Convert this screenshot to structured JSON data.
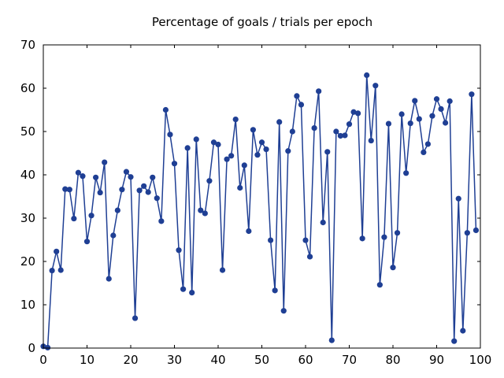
{
  "chart_data": {
    "type": "line",
    "title": "Percentage of goals / trials per epoch",
    "xlabel": "",
    "ylabel": "",
    "xlim": [
      0,
      100
    ],
    "ylim": [
      0,
      70
    ],
    "x_ticks": [
      0,
      10,
      20,
      30,
      40,
      50,
      60,
      70,
      80,
      90,
      100
    ],
    "y_ticks": [
      0,
      10,
      20,
      30,
      40,
      50,
      60,
      70
    ],
    "grid": false,
    "series": [
      {
        "name": "goals",
        "color": "#1f3f94",
        "marker": "circle",
        "x": [
          0,
          1,
          2,
          3,
          4,
          5,
          6,
          7,
          8,
          9,
          10,
          11,
          12,
          13,
          14,
          15,
          16,
          17,
          18,
          19,
          20,
          21,
          22,
          23,
          24,
          25,
          26,
          27,
          28,
          29,
          30,
          31,
          32,
          33,
          34,
          35,
          36,
          37,
          38,
          39,
          40,
          41,
          42,
          43,
          44,
          45,
          46,
          47,
          48,
          49,
          50,
          51,
          52,
          53,
          54,
          55,
          56,
          57,
          58,
          59,
          60,
          61,
          62,
          63,
          64,
          65,
          66,
          67,
          68,
          69,
          70,
          71,
          72,
          73,
          74,
          75,
          76,
          77,
          78,
          79,
          80,
          81,
          82,
          83,
          84,
          85,
          86,
          87,
          88,
          89,
          90,
          91,
          92,
          93,
          94,
          95,
          96,
          97,
          98,
          99
        ],
        "values": [
          0.4,
          0.1,
          17.9,
          22.3,
          18.0,
          36.7,
          36.6,
          29.9,
          40.5,
          39.7,
          24.6,
          30.6,
          39.4,
          35.9,
          42.9,
          16.0,
          26.0,
          31.8,
          36.6,
          40.7,
          39.5,
          6.9,
          36.4,
          37.4,
          36.0,
          39.4,
          34.6,
          29.3,
          55.0,
          49.3,
          42.6,
          22.6,
          13.6,
          46.2,
          12.8,
          48.2,
          31.8,
          31.1,
          38.6,
          47.5,
          47.0,
          18.0,
          43.6,
          44.4,
          52.8,
          37.0,
          42.2,
          27.0,
          50.4,
          44.6,
          47.5,
          45.9,
          24.9,
          13.3,
          52.2,
          8.6,
          45.5,
          50.0,
          58.2,
          56.2,
          24.9,
          21.1,
          50.8,
          59.3,
          29.0,
          45.3,
          1.8,
          50.0,
          49.0,
          49.1,
          51.7,
          54.5,
          54.2,
          25.3,
          63.0,
          47.9,
          60.6,
          14.6,
          25.6,
          51.8,
          18.6,
          26.6,
          54.0,
          40.4,
          51.9,
          57.1,
          52.9,
          45.2,
          47.1,
          53.6,
          57.5,
          55.2,
          52.0,
          57.0,
          1.6,
          34.5,
          4.0,
          26.6,
          58.6,
          27.2
        ]
      }
    ]
  }
}
